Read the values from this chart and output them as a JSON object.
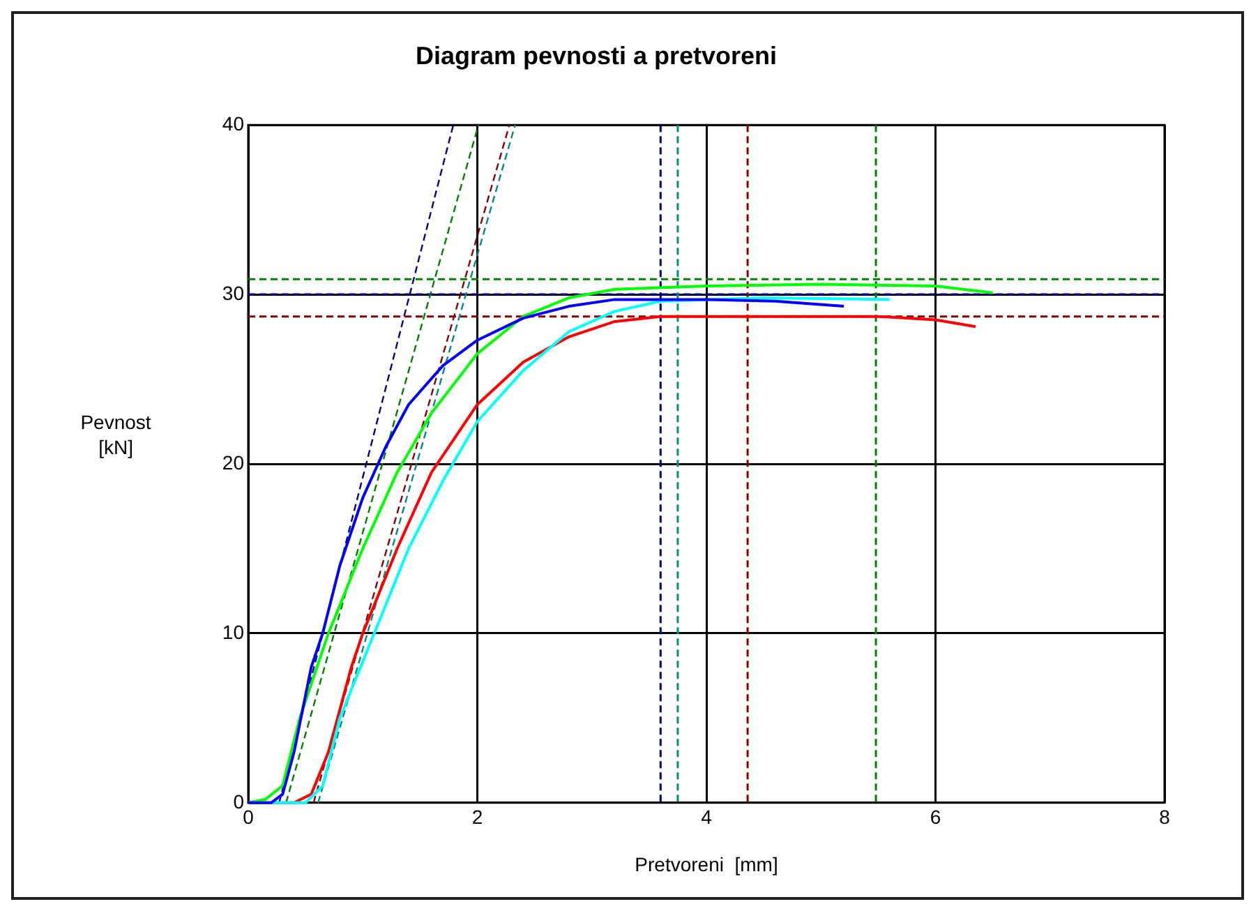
{
  "chart_data": {
    "type": "line",
    "title": "Diagram pevnosti a pretvoreni",
    "xlabel": "Pretvoreni  [mm]",
    "ylabel": "Pevnost\n[kN]",
    "xlim": [
      0,
      8
    ],
    "xticks": [
      0,
      2,
      4,
      6,
      8
    ],
    "ylim": [
      0,
      40
    ],
    "yticks": [
      0,
      10,
      20,
      30,
      40
    ],
    "grid": true,
    "legend": false,
    "marker": "none",
    "series": [
      {
        "color": "#0000ff",
        "x": [
          0,
          0.2,
          0.3,
          0.4,
          0.55,
          0.65,
          0.8,
          1.0,
          1.2,
          1.4,
          1.7,
          2.0,
          2.4,
          2.8,
          3.2,
          4.0,
          4.6,
          5.2
        ],
        "values": [
          0,
          0,
          0.5,
          3,
          8,
          10,
          14,
          18,
          21,
          23.5,
          25.8,
          27.3,
          28.6,
          29.3,
          29.7,
          29.7,
          29.6,
          29.3
        ]
      },
      {
        "color": "#00ff00",
        "x": [
          0,
          0.15,
          0.3,
          0.45,
          0.7,
          1.0,
          1.3,
          1.6,
          2.0,
          2.4,
          2.8,
          3.2,
          4.0,
          5.0,
          6.0,
          6.5
        ],
        "values": [
          0,
          0.2,
          1,
          5,
          10,
          15,
          19.5,
          23,
          26.5,
          28.7,
          29.8,
          30.3,
          30.5,
          30.6,
          30.5,
          30.1
        ]
      },
      {
        "color": "#00ffff",
        "x": [
          0,
          0.5,
          0.65,
          0.8,
          1.1,
          1.4,
          1.7,
          2.0,
          2.4,
          2.8,
          3.2,
          3.6,
          4.5,
          5.6
        ],
        "values": [
          0,
          0,
          1,
          5,
          10,
          15,
          19,
          22.5,
          25.5,
          27.8,
          29,
          29.6,
          29.8,
          29.7
        ]
      },
      {
        "color": "#ff0000",
        "x": [
          0,
          0.4,
          0.55,
          0.7,
          0.9,
          1.0,
          1.3,
          1.6,
          2.0,
          2.4,
          2.8,
          3.2,
          3.6,
          5.5,
          6.0,
          6.35
        ],
        "values": [
          0,
          0,
          0.5,
          3,
          8,
          10,
          15,
          19.5,
          23.5,
          26,
          27.5,
          28.4,
          28.7,
          28.7,
          28.5,
          28.1
        ]
      },
      {
        "color": "#00008b",
        "line_style": "dashed",
        "x": [
          0.27,
          1.79
        ],
        "values": [
          0,
          40
        ]
      },
      {
        "color": "#008000",
        "line_style": "dashed",
        "x": [
          0.33,
          2.01
        ],
        "values": [
          0,
          40
        ]
      },
      {
        "color": "#8b0000",
        "line_style": "dashed",
        "x": [
          0.57,
          2.28
        ],
        "values": [
          0,
          40
        ]
      },
      {
        "color": "#008b8b",
        "line_style": "dashed",
        "x": [
          0.61,
          2.33
        ],
        "values": [
          0,
          40
        ]
      }
    ],
    "ref_lines": [
      {
        "axis": "y",
        "value": 30.9,
        "color": "#008000",
        "line_style": "dashed"
      },
      {
        "axis": "y",
        "value": 30,
        "color": "#00008b",
        "line_style": "dashed"
      },
      {
        "axis": "y",
        "value": 28.7,
        "color": "#8b0000",
        "line_style": "dashed"
      },
      {
        "axis": "x",
        "value": 3.6,
        "color": "#00008b",
        "line_style": "dashed"
      },
      {
        "axis": "x",
        "value": 3.75,
        "color": "#008b8b",
        "line_style": "dashed"
      },
      {
        "axis": "x",
        "value": 4.36,
        "color": "#8b0000",
        "line_style": "dashed"
      },
      {
        "axis": "x",
        "value": 5.48,
        "color": "#008000",
        "line_style": "dashed"
      }
    ]
  }
}
